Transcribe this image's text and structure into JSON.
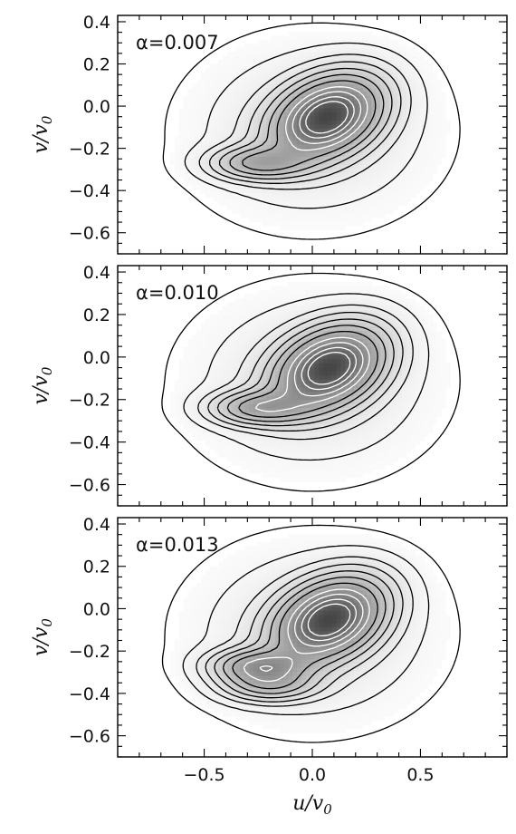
{
  "chart_data": [
    {
      "type": "contour",
      "label": "α=0.007",
      "xlabel": "u/v0",
      "ylabel": "v/v0",
      "xlim": [
        -0.9,
        0.9
      ],
      "ylim": [
        -0.7,
        0.43
      ],
      "xticks": [
        -0.5,
        0.0,
        0.5
      ],
      "xtick_labels": [
        "−0.5",
        "0.0",
        "0.5"
      ],
      "yticks": [
        0.4,
        0.2,
        0.0,
        -0.2,
        -0.4,
        -0.6
      ],
      "ytick_labels": [
        "0.4",
        "0.2",
        "0.0",
        "−0.2",
        "−0.4",
        "−0.6"
      ],
      "peaks": [
        {
          "u": 0.07,
          "v": -0.05,
          "amplitude": 1.0
        },
        {
          "u": -0.25,
          "v": -0.27,
          "amplitude": 0.42
        }
      ]
    },
    {
      "type": "contour",
      "label": "α=0.010",
      "xlabel": "u/v0",
      "ylabel": "v/v0",
      "xlim": [
        -0.9,
        0.9
      ],
      "ylim": [
        -0.7,
        0.43
      ],
      "xticks": [
        -0.5,
        0.0,
        0.5
      ],
      "xtick_labels": [
        "−0.5",
        "0.0",
        "0.5"
      ],
      "yticks": [
        0.4,
        0.2,
        0.0,
        -0.2,
        -0.4,
        -0.6
      ],
      "ytick_labels": [
        "0.4",
        "0.2",
        "0.0",
        "−0.2",
        "−0.4",
        "−0.6"
      ],
      "peaks": [
        {
          "u": 0.08,
          "v": -0.05,
          "amplitude": 1.0
        },
        {
          "u": -0.25,
          "v": -0.24,
          "amplitude": 0.45
        }
      ]
    },
    {
      "type": "contour",
      "label": "α=0.013",
      "xlabel": "u/v0",
      "ylabel": "v/v0",
      "xlim": [
        -0.9,
        0.9
      ],
      "ylim": [
        -0.7,
        0.43
      ],
      "xticks": [
        -0.5,
        0.0,
        0.5
      ],
      "xtick_labels": [
        "−0.5",
        "0.0",
        "0.5"
      ],
      "yticks": [
        0.4,
        0.2,
        0.0,
        -0.2,
        -0.4,
        -0.6
      ],
      "ytick_labels": [
        "0.4",
        "0.2",
        "0.0",
        "−0.2",
        "−0.4",
        "−0.6"
      ],
      "peaks": [
        {
          "u": 0.08,
          "v": -0.05,
          "amplitude": 1.0
        },
        {
          "u": -0.25,
          "v": -0.27,
          "amplitude": 0.5
        },
        {
          "u": -0.2,
          "v": -0.36,
          "amplitude": 0.35
        }
      ]
    }
  ],
  "colors": {
    "contour_dark": "#000000",
    "contour_light": "#ffffff",
    "frame": "#000000"
  }
}
